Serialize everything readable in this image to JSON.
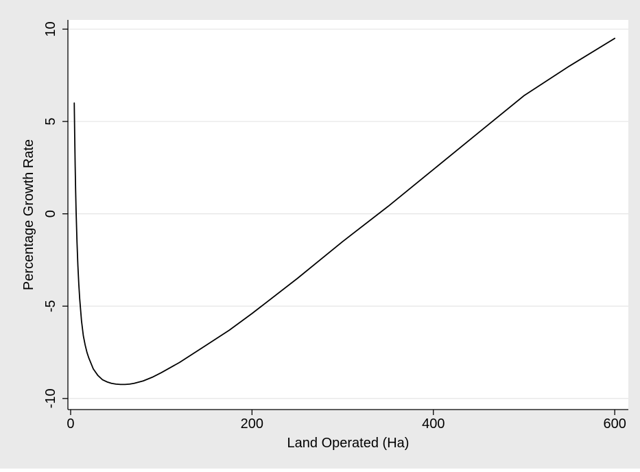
{
  "colors": {
    "outer_background": "#eaeaea",
    "plot_background": "#ffffff",
    "gridline": "#e4e4e4",
    "line": "#000000",
    "axis": "#000000"
  },
  "chart_data": {
    "type": "line",
    "title": "",
    "xlabel": "Land Operated (Ha)",
    "ylabel": "Percentage Growth Rate",
    "xlim": [
      -3,
      615
    ],
    "ylim": [
      -10.6,
      10.5
    ],
    "x_ticks": [
      0,
      200,
      400,
      600
    ],
    "x_tick_labels": [
      "0",
      "200",
      "400",
      "600"
    ],
    "y_ticks": [
      -10,
      -5,
      0,
      5,
      10
    ],
    "y_tick_labels": [
      "-10",
      "-5",
      "0",
      "5",
      "10"
    ],
    "grid": "horizontal",
    "legend": "none",
    "series": [
      {
        "x": [
          4,
          4.5,
          5,
          5.5,
          6,
          7,
          8,
          9,
          10,
          12,
          14,
          16,
          18,
          20,
          25,
          30,
          35,
          40,
          45,
          50,
          55,
          60,
          65,
          70,
          80,
          90,
          100,
          120,
          150,
          175,
          200,
          250,
          300,
          350,
          400,
          450,
          500,
          550,
          600
        ],
        "y": [
          6.0,
          4.2,
          2.6,
          1.3,
          0.2,
          -1.5,
          -2.8,
          -3.8,
          -4.6,
          -5.8,
          -6.6,
          -7.1,
          -7.5,
          -7.8,
          -8.4,
          -8.75,
          -8.98,
          -9.1,
          -9.18,
          -9.22,
          -9.24,
          -9.24,
          -9.22,
          -9.18,
          -9.05,
          -8.85,
          -8.6,
          -8.05,
          -7.1,
          -6.3,
          -5.4,
          -3.5,
          -1.5,
          0.4,
          2.4,
          4.4,
          6.4,
          8.0,
          9.5
        ]
      }
    ]
  }
}
